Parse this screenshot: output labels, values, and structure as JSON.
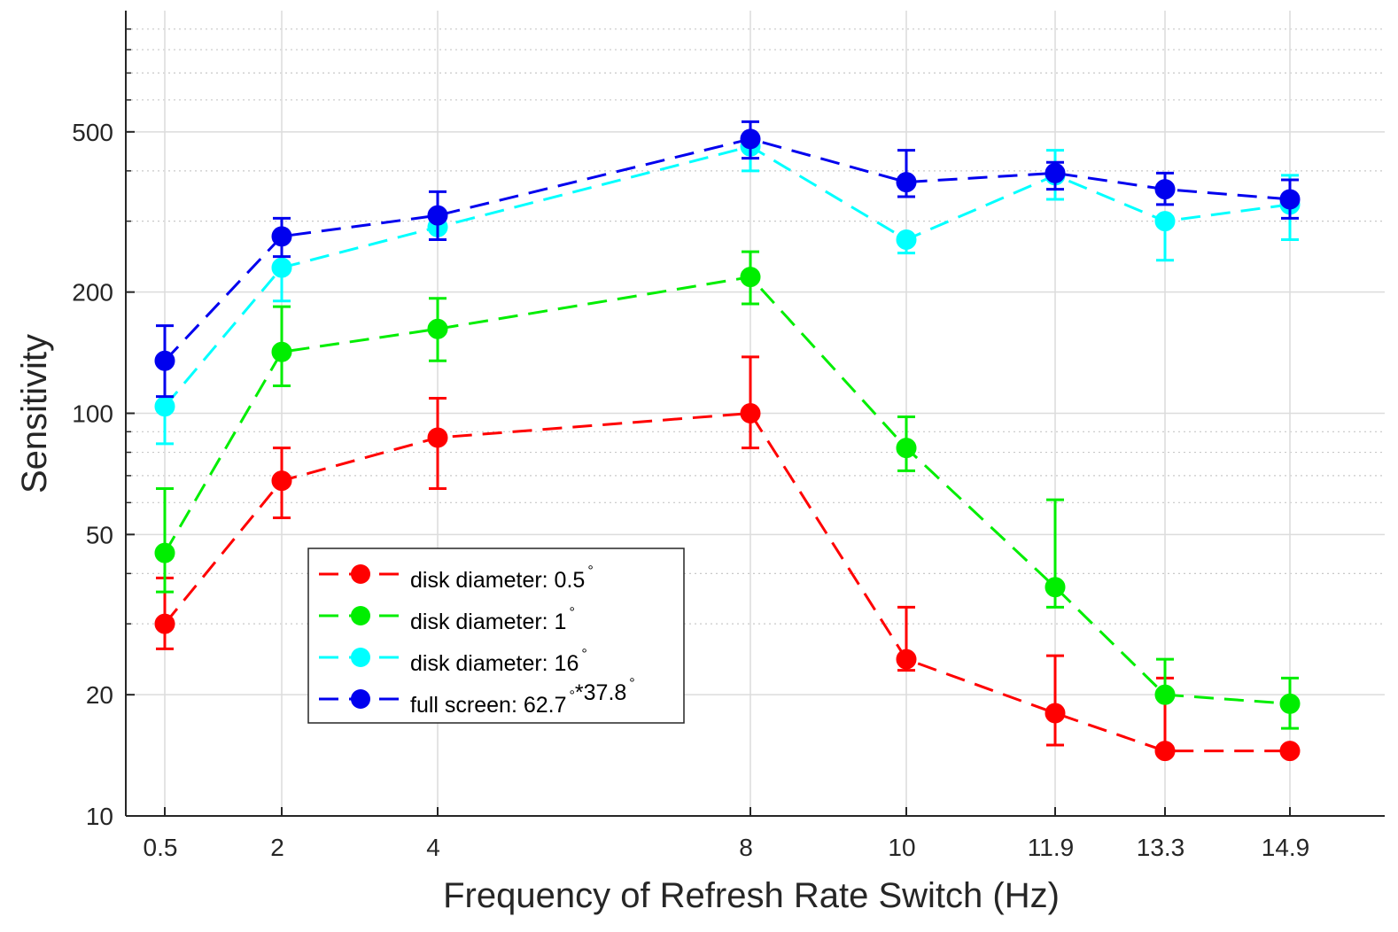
{
  "chart_data": {
    "type": "line",
    "xlabel": "Frequency of Refresh Rate Switch (Hz)",
    "ylabel": "Sensitivity",
    "yscale": "log",
    "ylim": [
      10,
      1000
    ],
    "ytick_values": [
      10,
      20,
      50,
      100,
      200,
      500
    ],
    "ytick_labels": [
      "10",
      "20",
      "50",
      "100",
      "200",
      "500"
    ],
    "categories": [
      "0.5",
      "2",
      "4",
      "8",
      "10",
      "11.9",
      "13.3",
      "14.9"
    ],
    "grid": true,
    "legend_position": "lower-left",
    "series": [
      {
        "name": "disk diameter: 0.5",
        "degree_marks": [
          "°"
        ],
        "color": "#ff0000",
        "values": [
          30,
          68,
          87,
          100,
          24.5,
          18,
          14.5,
          14.5
        ],
        "err_low": [
          4,
          13,
          22,
          18,
          1.5,
          3,
          0,
          0
        ],
        "err_high": [
          9,
          14,
          22,
          38,
          8.5,
          7,
          7.5,
          0
        ]
      },
      {
        "name": "disk diameter: 1",
        "degree_marks": [
          "°"
        ],
        "color": "#00ee00",
        "values": [
          45,
          142,
          162,
          218,
          82,
          37,
          20,
          19
        ],
        "err_low": [
          9,
          25,
          27,
          31,
          10,
          4,
          0,
          2.5
        ],
        "err_high": [
          20,
          42,
          31,
          34,
          16,
          24,
          4.5,
          3
        ]
      },
      {
        "name": "disk diameter: 16",
        "degree_marks": [
          "°"
        ],
        "color": "#00ffff",
        "values": [
          104,
          230,
          290,
          460,
          270,
          390,
          300,
          330
        ],
        "err_low": [
          20,
          40,
          20,
          60,
          20,
          50,
          60,
          60
        ],
        "err_high": [
          0,
          0,
          0,
          0,
          0,
          60,
          0,
          60
        ]
      },
      {
        "name": "full screen: 62.7",
        "degree_marks": [
          "°",
          "*37.8",
          "°"
        ],
        "color": "#0000ee",
        "values": [
          135,
          275,
          310,
          480,
          375,
          395,
          360,
          340
        ],
        "err_low": [
          25,
          30,
          40,
          50,
          30,
          35,
          30,
          35
        ],
        "err_high": [
          30,
          30,
          45,
          50,
          75,
          25,
          35,
          40
        ]
      }
    ]
  }
}
